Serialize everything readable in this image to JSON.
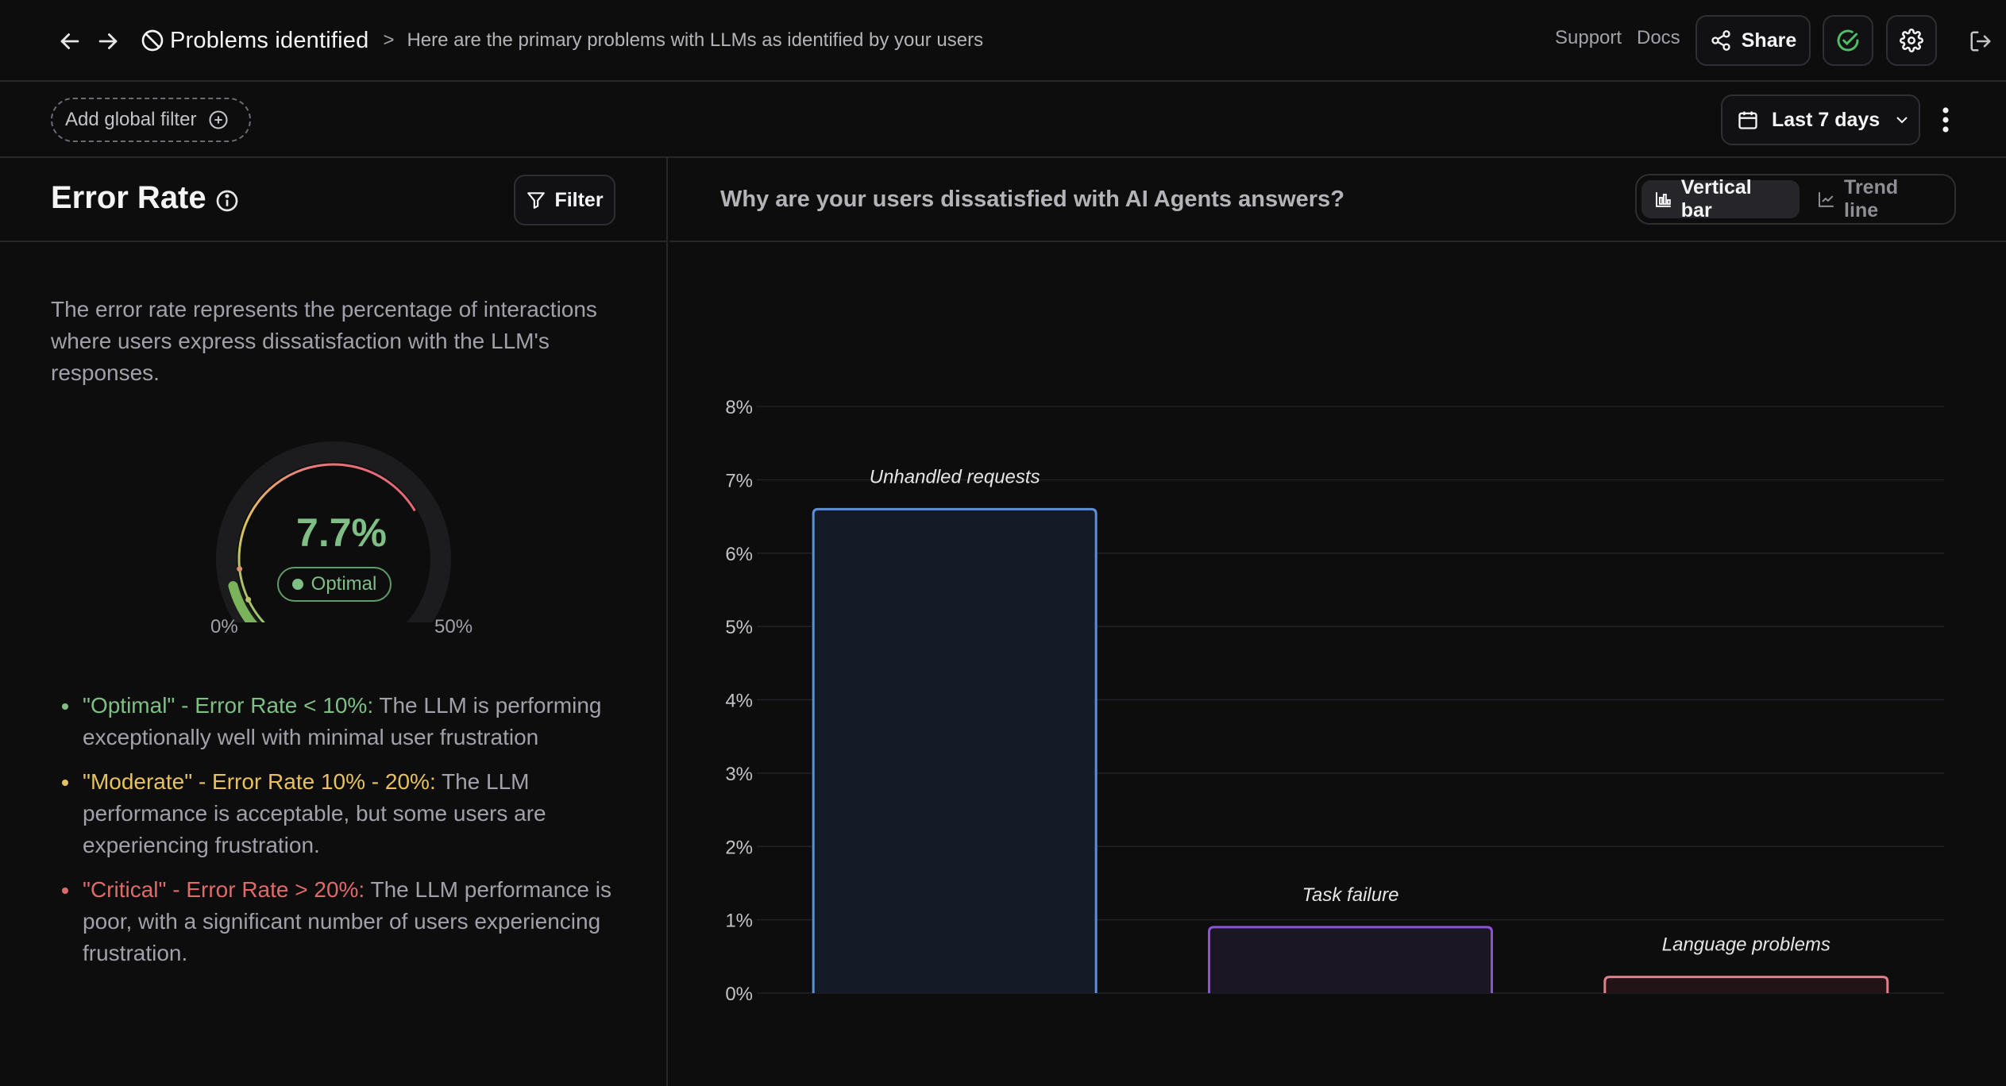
{
  "topbar": {
    "title": "Problems identified",
    "separator": ">",
    "description": "Here are the primary problems with LLMs as identified by your users",
    "support_label": "Support",
    "docs_label": "Docs",
    "share_label": "Share"
  },
  "filterbar": {
    "global_filter_label": "Add global filter",
    "date_range_label": "Last 7 days"
  },
  "error_panel": {
    "title": "Error Rate",
    "filter_label": "Filter",
    "description": "The error rate represents the percentage of interactions where users express dissatisfaction with the LLM's responses.",
    "gauge": {
      "value_text": "7.7%",
      "value": 7.7,
      "min_label": "0%",
      "max_label": "50%",
      "max": 50,
      "status": "Optimal"
    },
    "legend": [
      {
        "level": "optimal",
        "heading": "\"Optimal\" - Error Rate < 10%:",
        "text": " The LLM is performing exceptionally well with minimal user frustration",
        "color": "#7fbf86"
      },
      {
        "level": "moderate",
        "heading": "\"Moderate\" - Error Rate 10% - 20%:",
        "text": " The LLM performance is acceptable, but some users are experiencing frustration.",
        "color": "#e7c25c"
      },
      {
        "level": "critical",
        "heading": "\"Critical\" - Error Rate > 20%:",
        "text": " The LLM performance is poor, with a significant number of users experiencing frustration.",
        "color": "#e06a6a"
      }
    ]
  },
  "chart_panel": {
    "question": "Why are your users dissatisfied with AI Agents answers?",
    "views": [
      {
        "label": "Vertical bar",
        "active": true
      },
      {
        "label": "Trend line",
        "active": false
      }
    ]
  },
  "chart_data": {
    "type": "bar",
    "categories": [
      "Unhandled requests",
      "Task failure",
      "Language problems"
    ],
    "values": [
      6.6,
      0.9,
      0.22
    ],
    "colors": [
      "#5b8fd9",
      "#8b54d6",
      "#e07f8a"
    ],
    "fills": [
      "#151b26",
      "#1a1624",
      "#221416"
    ],
    "yticks": [
      "0%",
      "1%",
      "2%",
      "3%",
      "4%",
      "5%",
      "6%",
      "7%",
      "8%"
    ],
    "ylim": [
      0,
      8
    ],
    "grid": true,
    "title": "",
    "xlabel": "",
    "ylabel": ""
  }
}
